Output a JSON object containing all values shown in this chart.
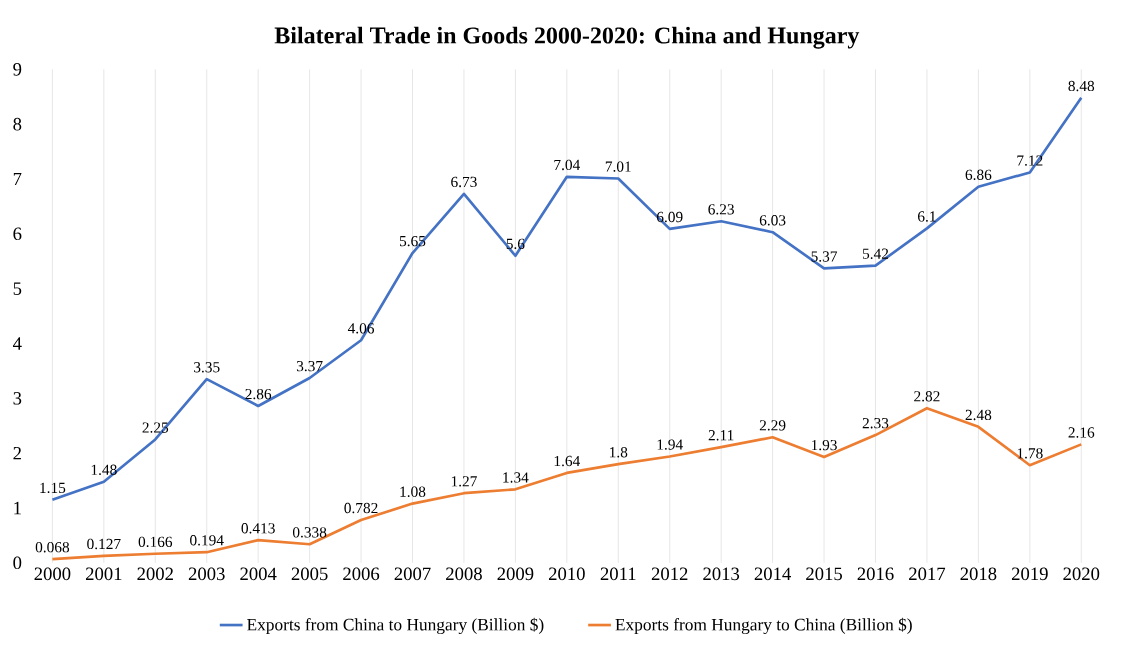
{
  "chart_data": {
    "type": "line",
    "title": "Bilateral Trade in Goods 2000-2020: China and Hungary",
    "categories": [
      "2000",
      "2001",
      "2002",
      "2003",
      "2004",
      "2005",
      "2006",
      "2007",
      "2008",
      "2009",
      "2010",
      "2011",
      "2012",
      "2013",
      "2014",
      "2015",
      "2016",
      "2017",
      "2018",
      "2019",
      "2020"
    ],
    "series": [
      {
        "name": "Exports from China to Hungary  (Billion $)",
        "color": "#4472c4",
        "values": [
          1.15,
          1.48,
          2.25,
          3.35,
          2.86,
          3.37,
          4.06,
          5.65,
          6.73,
          5.6,
          7.04,
          7.01,
          6.09,
          6.23,
          6.03,
          5.37,
          5.42,
          6.1,
          6.86,
          7.12,
          8.48
        ]
      },
      {
        "name": "Exports from Hungary  to China (Billion $)",
        "color": "#ed7d31",
        "values": [
          0.068,
          0.127,
          0.166,
          0.194,
          0.413,
          0.338,
          0.782,
          1.08,
          1.27,
          1.34,
          1.64,
          1.8,
          1.94,
          2.11,
          2.29,
          1.93,
          2.33,
          2.82,
          2.48,
          1.78,
          2.16
        ]
      }
    ],
    "ylim": [
      0,
      9
    ],
    "yticks": [
      0,
      1,
      2,
      3,
      4,
      5,
      6,
      7,
      8,
      9
    ],
    "grid": "x",
    "legend": "bottom",
    "marker": "none",
    "line_style": "solid",
    "data_labels": true
  }
}
